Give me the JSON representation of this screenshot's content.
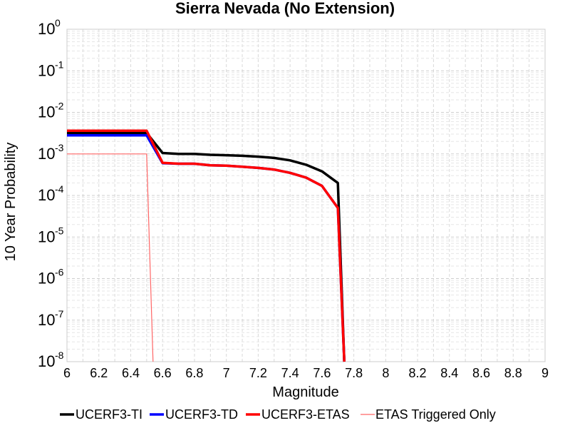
{
  "chart_data": {
    "type": "line",
    "title": "Sierra Nevada  (No Extension)",
    "xlabel": "Magnitude",
    "ylabel": "10 Year Probability",
    "xlim": [
      6,
      9
    ],
    "ylim": [
      1e-08,
      1
    ],
    "y_scale": "log",
    "x_ticks": [
      "6",
      "6.2",
      "6.4",
      "6.6",
      "6.8",
      "7",
      "7.2",
      "7.4",
      "7.6",
      "7.8",
      "8",
      "8.2",
      "8.4",
      "8.6",
      "8.8",
      "9"
    ],
    "y_ticks": [
      {
        "base": "10",
        "exp": "0",
        "value": 1
      },
      {
        "base": "10",
        "exp": "-1",
        "value": 0.1
      },
      {
        "base": "10",
        "exp": "-2",
        "value": 0.01
      },
      {
        "base": "10",
        "exp": "-3",
        "value": 0.001
      },
      {
        "base": "10",
        "exp": "-4",
        "value": 0.0001
      },
      {
        "base": "10",
        "exp": "-5",
        "value": 1e-05
      },
      {
        "base": "10",
        "exp": "-6",
        "value": 1e-06
      },
      {
        "base": "10",
        "exp": "-7",
        "value": 1e-07
      },
      {
        "base": "10",
        "exp": "-8",
        "value": 1e-08
      }
    ],
    "grid": true,
    "legend_position": "bottom",
    "series": [
      {
        "name": "UCERF3-TI",
        "color": "#000000",
        "x": [
          6.0,
          6.5,
          6.6,
          6.7,
          6.8,
          6.9,
          7.0,
          7.1,
          7.2,
          7.3,
          7.4,
          7.5,
          7.6,
          7.7,
          7.74
        ],
        "y": [
          0.0032,
          0.0032,
          0.00105,
          0.001,
          0.001,
          0.00095,
          0.00093,
          0.0009,
          0.00086,
          0.0008,
          0.0007,
          0.00055,
          0.00038,
          0.0002,
          1e-08
        ]
      },
      {
        "name": "UCERF3-TD",
        "color": "#0000ff",
        "x": [
          6.0,
          6.5,
          6.6,
          6.7,
          6.8,
          6.9,
          7.0,
          7.1,
          7.2,
          7.3,
          7.4,
          7.5,
          7.6,
          7.7,
          7.74
        ],
        "y": [
          0.0028,
          0.0028,
          0.0006,
          0.00058,
          0.00058,
          0.00053,
          0.00052,
          0.00049,
          0.00046,
          0.00042,
          0.00035,
          0.00027,
          0.00017,
          5e-05,
          1e-08
        ]
      },
      {
        "name": "UCERF3-ETAS",
        "color": "#ff0000",
        "x": [
          6.0,
          6.5,
          6.6,
          6.7,
          6.8,
          6.9,
          7.0,
          7.1,
          7.2,
          7.3,
          7.4,
          7.5,
          7.6,
          7.7,
          7.74
        ],
        "y": [
          0.0036,
          0.0036,
          0.00061,
          0.00058,
          0.00058,
          0.00053,
          0.00052,
          0.00049,
          0.00046,
          0.00042,
          0.00035,
          0.00027,
          0.00017,
          5e-05,
          1e-08
        ]
      },
      {
        "name": "ETAS Triggered Only",
        "color": "#ff6666",
        "x": [
          6.0,
          6.5,
          6.54
        ],
        "y": [
          0.001,
          0.001,
          1e-08
        ]
      }
    ]
  }
}
